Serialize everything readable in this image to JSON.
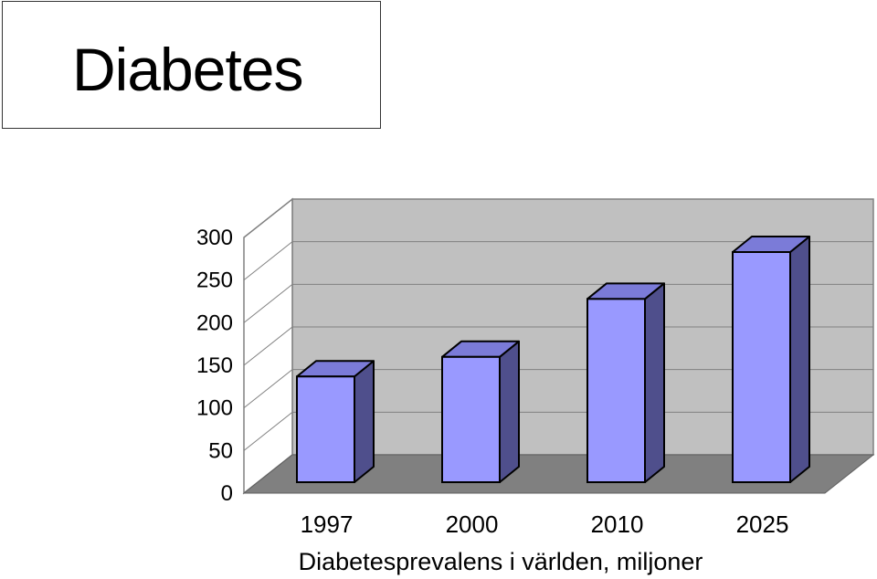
{
  "slide": {
    "title": "Diabetes"
  },
  "chart_data": {
    "type": "bar",
    "categories": [
      "1997",
      "2000",
      "2010",
      "2025"
    ],
    "values": [
      124,
      147,
      215,
      270
    ],
    "xlabel": "Diabetesprevalens i världen, miljoner",
    "ylabel": "",
    "ylim": [
      0,
      300
    ],
    "yticks": [
      "0",
      "50",
      "100",
      "150",
      "200",
      "250",
      "300"
    ],
    "grid": true,
    "three_d": true,
    "colors": {
      "bar_front": "#9999ff",
      "bar_top": "#7b7bd8",
      "bar_side": "#4f4f8c",
      "back_wall": "#c0c0c0",
      "side_wall": "#ffffff",
      "floor": "#808080"
    }
  }
}
